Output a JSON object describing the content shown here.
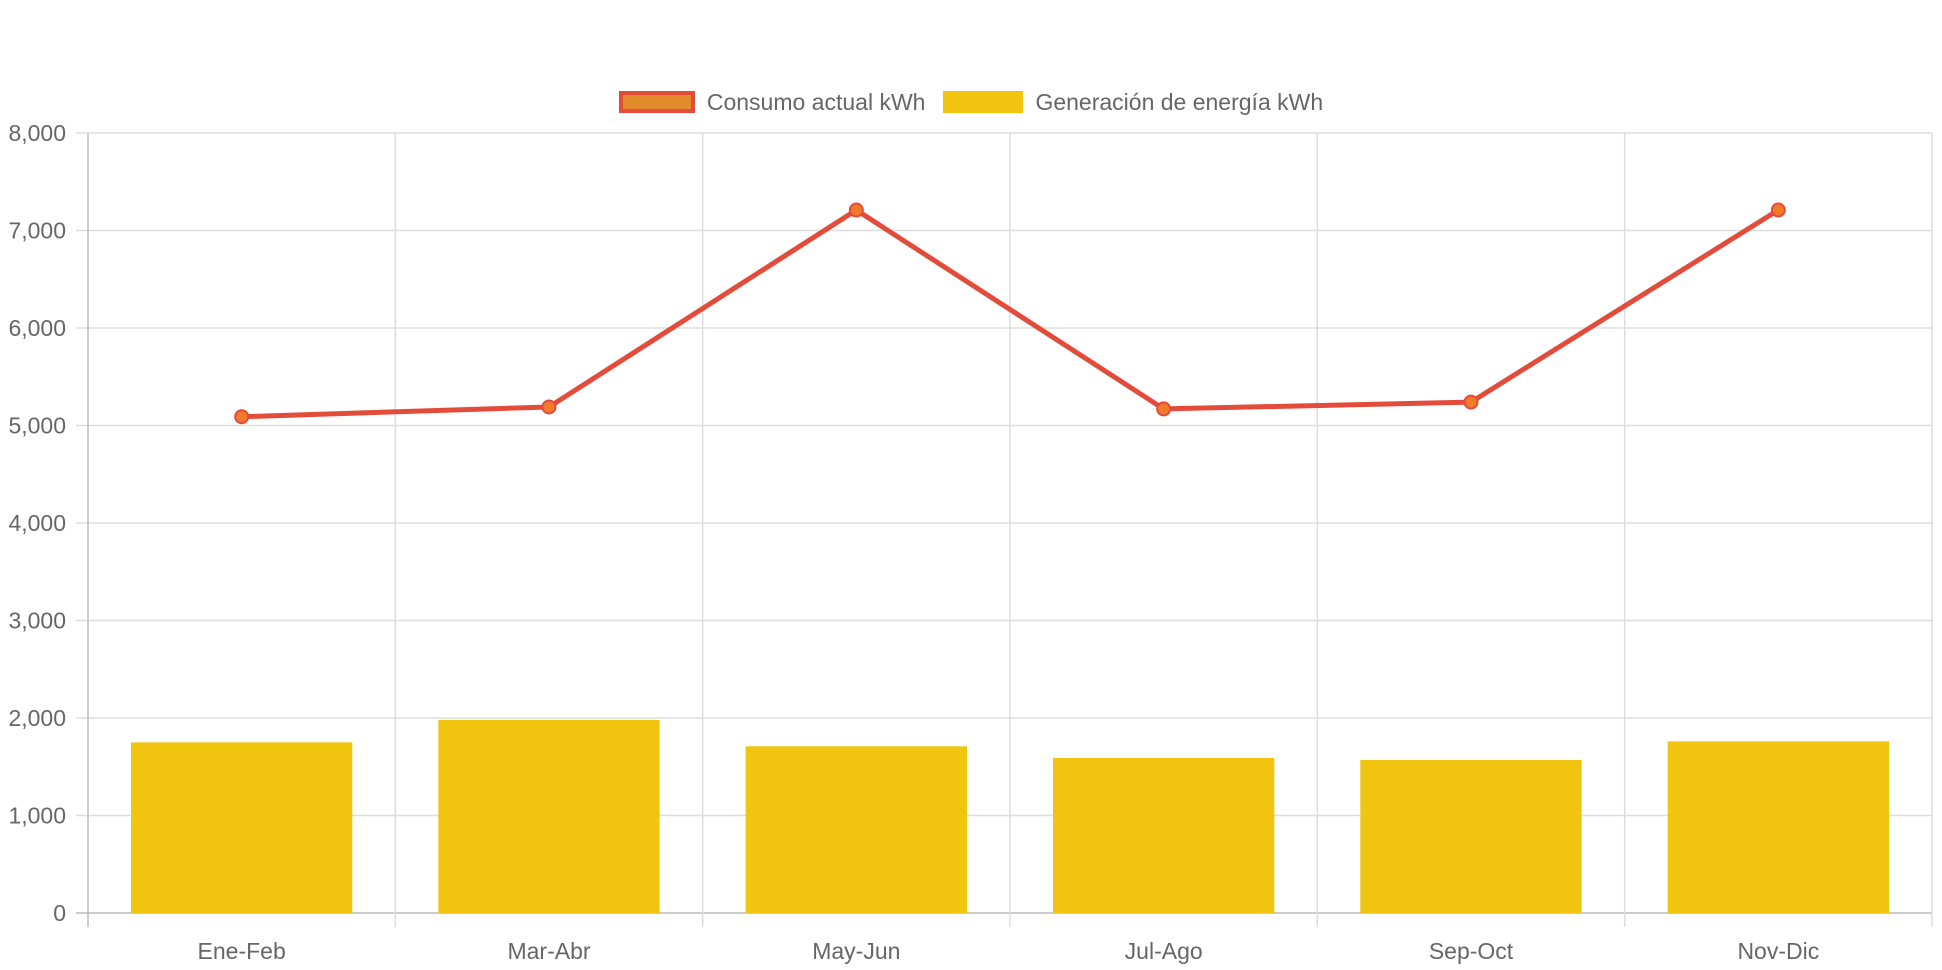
{
  "chart_data": {
    "type": "bar",
    "categories": [
      "Ene-Feb",
      "Mar-Abr",
      "May-Jun",
      "Jul-Ago",
      "Sep-Oct",
      "Nov-Dic"
    ],
    "series": [
      {
        "name": "Consumo actual kWh",
        "type": "line",
        "values": [
          5090,
          5190,
          7210,
          5170,
          5240,
          7210
        ],
        "color": "#e34b3a",
        "point_color": "#f07a2a"
      },
      {
        "name": "Generación de energía kWh",
        "type": "bar",
        "values": [
          1750,
          1980,
          1710,
          1590,
          1570,
          1760
        ],
        "color": "#f0c40f"
      }
    ],
    "ylim": [
      0,
      8000
    ],
    "yticks": [
      "0",
      "1,000",
      "2,000",
      "3,000",
      "4,000",
      "5,000",
      "6,000",
      "7,000",
      "8,000"
    ],
    "grid": true,
    "legend_position": "top-center",
    "title": "",
    "xlabel": "",
    "ylabel": ""
  },
  "colors": {
    "grid": "#dddddd",
    "axis": "#bbbbbb",
    "text": "#666666"
  }
}
